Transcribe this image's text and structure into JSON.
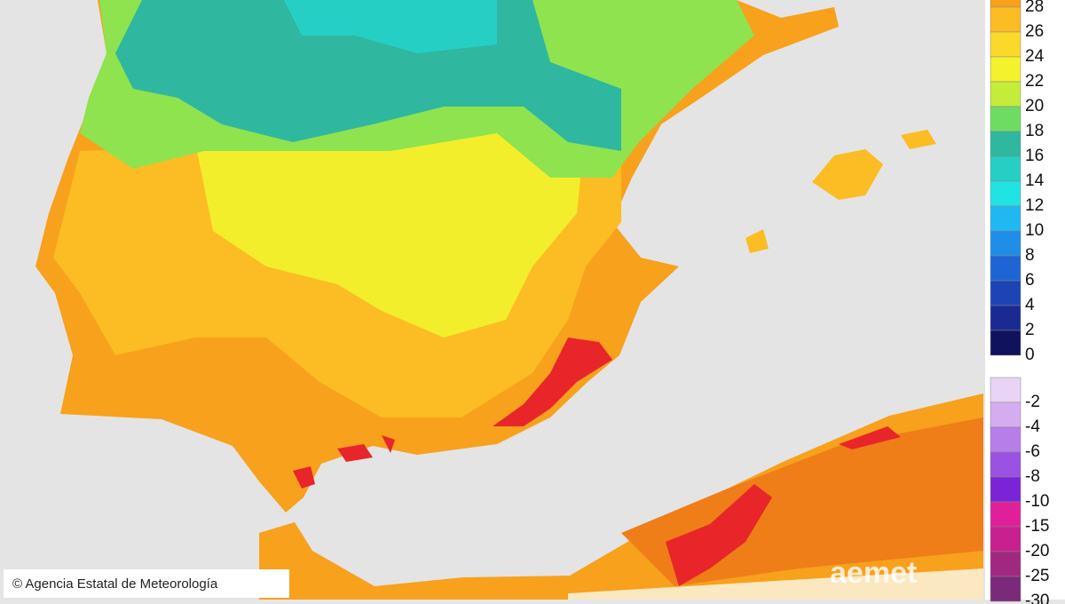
{
  "map": {
    "credit": "© Agencia Estatal de Meteorología",
    "logo": "aemet",
    "legend_warm": [
      {
        "label": "28",
        "color": "#f7a11d"
      },
      {
        "label": "26",
        "color": "#fbbd23"
      },
      {
        "label": "24",
        "color": "#fbd92a"
      },
      {
        "label": "22",
        "color": "#f3f22c"
      },
      {
        "label": "20",
        "color": "#c3ec3b"
      },
      {
        "label": "18",
        "color": "#6edc62"
      },
      {
        "label": "16",
        "color": "#2fb7a0"
      },
      {
        "label": "14",
        "color": "#26cfc4"
      },
      {
        "label": "12",
        "color": "#22e3e4"
      },
      {
        "label": "10",
        "color": "#20b8f0"
      },
      {
        "label": "8",
        "color": "#1e8ee8"
      },
      {
        "label": "6",
        "color": "#1e64d4"
      },
      {
        "label": "4",
        "color": "#1c44b4"
      },
      {
        "label": "2",
        "color": "#1a2a90"
      },
      {
        "label": "0",
        "color": "#10125e"
      }
    ],
    "legend_cold": [
      {
        "label": "-2",
        "color": "#e8d4f4"
      },
      {
        "label": "-4",
        "color": "#d4adf0"
      },
      {
        "label": "-6",
        "color": "#b57ee8"
      },
      {
        "label": "-8",
        "color": "#9a52e2"
      },
      {
        "label": "-10",
        "color": "#7a24d6"
      },
      {
        "label": "-15",
        "color": "#e0209a"
      },
      {
        "label": "-20",
        "color": "#c8208e"
      },
      {
        "label": "-25",
        "color": "#a0287e"
      },
      {
        "label": "-30",
        "color": "#7a2a78"
      }
    ]
  }
}
